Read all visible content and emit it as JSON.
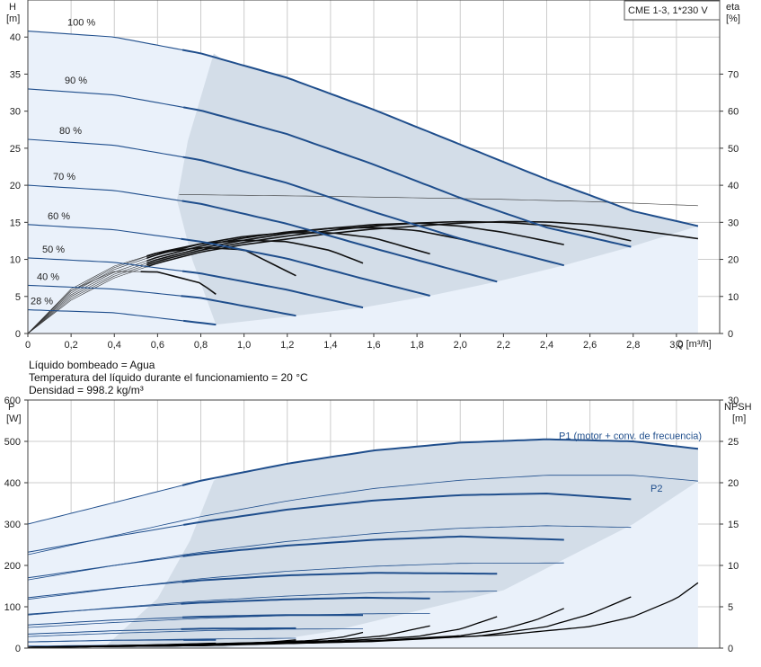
{
  "model_box": "CME 1-3, 1*230 V",
  "info": [
    "Líquido bombeado = Agua",
    "Temperatura del líquido durante el funcionamiento = 20 °C",
    "Densidad = 998.2 kg/m³"
  ],
  "colors": {
    "curve_blue": "#1f4e8c",
    "envelope_fill": "#d3dde8",
    "light_fill": "#eaf1fa",
    "grid": "#cccccc",
    "npsh_black": "#000000"
  },
  "chart_data": [
    {
      "type": "line",
      "title": "",
      "xlabel": "Q [m³/h]",
      "ylabel": "H [m]",
      "y2label": "eta [%]",
      "xlim": [
        0,
        3.2
      ],
      "ylim": [
        0,
        45
      ],
      "y2lim": [
        0,
        90
      ],
      "x_ticks": [
        "0",
        "0,2",
        "0,4",
        "0,6",
        "0,8",
        "1,0",
        "1,2",
        "1,4",
        "1,6",
        "1,8",
        "2,0",
        "2,2",
        "2,4",
        "2,6",
        "2,8",
        "3,0"
      ],
      "y_ticks": [
        "0",
        "5",
        "10",
        "15",
        "20",
        "25",
        "30",
        "35",
        "40"
      ],
      "y2_ticks": [
        "0",
        "10",
        "20",
        "30",
        "40",
        "50",
        "60",
        "70"
      ],
      "grid": true,
      "head_series": [
        {
          "name": "100 %",
          "x": [
            0,
            0.4,
            0.8,
            1.2,
            1.6,
            2.0,
            2.4,
            2.8,
            3.1
          ],
          "y": [
            40.8,
            40.0,
            37.8,
            34.5,
            30.2,
            25.5,
            20.8,
            16.5,
            14.5
          ]
        },
        {
          "name": "90 %",
          "x": [
            0,
            0.4,
            0.8,
            1.2,
            1.6,
            2.0,
            2.4,
            2.79
          ],
          "y": [
            33.0,
            32.2,
            30.1,
            26.9,
            22.8,
            18.3,
            14.3,
            11.7
          ]
        },
        {
          "name": "80 %",
          "x": [
            0,
            0.4,
            0.8,
            1.2,
            1.6,
            2.0,
            2.48
          ],
          "y": [
            26.2,
            25.4,
            23.4,
            20.3,
            16.4,
            12.8,
            9.2
          ]
        },
        {
          "name": "70 %",
          "x": [
            0,
            0.4,
            0.8,
            1.2,
            1.6,
            2.17
          ],
          "y": [
            20.0,
            19.3,
            17.5,
            14.8,
            11.5,
            7.0
          ]
        },
        {
          "name": "60 %",
          "x": [
            0,
            0.4,
            0.8,
            1.2,
            1.55,
            1.86
          ],
          "y": [
            14.7,
            14.0,
            12.4,
            10.1,
            7.4,
            5.1
          ]
        },
        {
          "name": "50 %",
          "x": [
            0,
            0.4,
            0.8,
            1.2,
            1.55
          ],
          "y": [
            10.2,
            9.6,
            8.1,
            5.9,
            3.5
          ]
        },
        {
          "name": "40 %",
          "x": [
            0,
            0.4,
            0.8,
            1.24
          ],
          "y": [
            6.5,
            6.0,
            4.8,
            2.4
          ]
        },
        {
          "name": "28 %",
          "x": [
            0,
            0.4,
            0.87
          ],
          "y": [
            3.2,
            2.8,
            1.2
          ]
        }
      ],
      "eta_series": [
        {
          "speed": "100 %",
          "x": [
            0,
            0.2,
            0.4,
            0.6,
            0.8,
            1.0,
            1.2,
            1.4,
            1.6,
            1.8,
            2.0,
            2.2,
            2.4,
            2.6,
            2.8,
            3.1
          ],
          "y": [
            0,
            9,
            15,
            19,
            22,
            24,
            25.5,
            27,
            28.2,
            29,
            29.8,
            30.2,
            30.1,
            29.4,
            28,
            25.6
          ]
        },
        {
          "speed": "90 %",
          "x": [
            0,
            0.2,
            0.4,
            0.6,
            0.8,
            1.0,
            1.2,
            1.4,
            1.6,
            1.8,
            2.0,
            2.2,
            2.4,
            2.6,
            2.79
          ],
          "y": [
            0,
            9.5,
            15.5,
            19.5,
            22.5,
            24.6,
            26.3,
            27.8,
            29,
            29.8,
            30.2,
            30,
            29.2,
            27.5,
            25
          ]
        },
        {
          "speed": "80 %",
          "x": [
            0,
            0.2,
            0.4,
            0.6,
            0.8,
            1.0,
            1.2,
            1.4,
            1.6,
            1.8,
            2.0,
            2.2,
            2.48
          ],
          "y": [
            0,
            10,
            16,
            20,
            23,
            25.2,
            27,
            28.4,
            29.4,
            29.8,
            29,
            27.3,
            24
          ]
        },
        {
          "speed": "70 %",
          "x": [
            0,
            0.2,
            0.4,
            0.6,
            0.8,
            1.0,
            1.2,
            1.4,
            1.6,
            1.8,
            2.0,
            2.17
          ],
          "y": [
            0,
            10.5,
            16.6,
            20.6,
            23.6,
            25.8,
            27.4,
            28.4,
            28.6,
            27.8,
            25.5,
            23
          ]
        },
        {
          "speed": "60 %",
          "x": [
            0,
            0.2,
            0.4,
            0.6,
            0.8,
            1.0,
            1.2,
            1.4,
            1.6,
            1.86
          ],
          "y": [
            0,
            11,
            17.3,
            21.3,
            24.2,
            26.2,
            27.2,
            27.2,
            25.8,
            21.5
          ]
        },
        {
          "speed": "50 %",
          "x": [
            0,
            0.2,
            0.4,
            0.6,
            0.8,
            1.0,
            1.2,
            1.4,
            1.55
          ],
          "y": [
            0,
            11.5,
            17.8,
            21.8,
            24.2,
            25.2,
            24.8,
            22.4,
            19
          ]
        },
        {
          "speed": "40 %",
          "x": [
            0,
            0.2,
            0.4,
            0.6,
            0.8,
            1.0,
            1.24
          ],
          "y": [
            0,
            12,
            18.2,
            21.8,
            23.2,
            22.6,
            15.6
          ]
        },
        {
          "speed": "28 %",
          "x": [
            0,
            0.2,
            0.4,
            0.6,
            0.8,
            0.87
          ],
          "y": [
            0,
            11.6,
            16.8,
            16.6,
            13.6,
            10.6
          ]
        }
      ],
      "eta_at_fixed_head": [
        {
          "head": 18.5,
          "x": [
            0.7,
            1.0,
            1.4,
            1.8,
            2.2,
            2.6,
            3.1
          ],
          "y": [
            37.5,
            37.3,
            37.0,
            36.6,
            36.2,
            35.6,
            34.5
          ]
        }
      ]
    },
    {
      "type": "line",
      "title": "",
      "xlabel": "Q [m³/h]",
      "ylabel": "P [W]",
      "y2label": "NPSH [m]",
      "xlim": [
        0,
        3.2
      ],
      "ylim": [
        0,
        600
      ],
      "y2lim": [
        0,
        30
      ],
      "y_ticks": [
        "0",
        "100",
        "200",
        "300",
        "400",
        "500",
        "600"
      ],
      "y2_ticks": [
        "0",
        "5",
        "10",
        "15",
        "20",
        "25",
        "30"
      ],
      "grid": true,
      "p1_label": "P1 (motor + conv. de frecuencia)",
      "p2_label": "P2",
      "p1_series": [
        {
          "speed": "100 %",
          "x": [
            0,
            0.4,
            0.8,
            1.2,
            1.6,
            2.0,
            2.4,
            2.8,
            3.1
          ],
          "y": [
            300,
            352,
            405,
            446,
            478,
            497,
            505,
            500,
            482
          ]
        },
        {
          "speed": "90 %",
          "x": [
            0,
            0.4,
            0.8,
            1.2,
            1.6,
            2.0,
            2.4,
            2.79
          ],
          "y": [
            232,
            270,
            305,
            335,
            357,
            370,
            374,
            360
          ]
        },
        {
          "speed": "80 %",
          "x": [
            0,
            0.4,
            0.8,
            1.2,
            1.6,
            2.0,
            2.48
          ],
          "y": [
            170,
            200,
            228,
            248,
            262,
            270,
            262
          ]
        },
        {
          "speed": "70 %",
          "x": [
            0,
            0.4,
            0.8,
            1.2,
            1.6,
            2.17
          ],
          "y": [
            122,
            145,
            164,
            176,
            182,
            180
          ]
        },
        {
          "speed": "60 %",
          "x": [
            0,
            0.4,
            0.8,
            1.2,
            1.55,
            1.86
          ],
          "y": [
            82,
            97,
            110,
            118,
            122,
            120
          ]
        },
        {
          "speed": "50 %",
          "x": [
            0,
            0.4,
            0.8,
            1.2,
            1.55
          ],
          "y": [
            56,
            68,
            76,
            80,
            80
          ]
        },
        {
          "speed": "40 %",
          "x": [
            0,
            0.4,
            0.8,
            1.24
          ],
          "y": [
            34,
            42,
            47,
            48
          ]
        },
        {
          "speed": "28 %",
          "x": [
            0,
            0.4,
            0.87
          ],
          "y": [
            15,
            19,
            20
          ]
        }
      ],
      "p2_series": [
        {
          "speed": "100 %",
          "x": [
            0,
            0.4,
            0.8,
            1.2,
            1.6,
            2.0,
            2.4,
            2.8,
            3.1
          ],
          "y": [
            226,
            272,
            318,
            356,
            386,
            406,
            418,
            418,
            404
          ]
        },
        {
          "speed": "90 %",
          "x": [
            0,
            0.4,
            0.8,
            1.2,
            1.6,
            2.0,
            2.4,
            2.79
          ],
          "y": [
            165,
            200,
            232,
            258,
            277,
            290,
            296,
            292
          ]
        },
        {
          "speed": "80 %",
          "x": [
            0,
            0.4,
            0.8,
            1.2,
            1.6,
            2.0,
            2.48
          ],
          "y": [
            118,
            144,
            168,
            186,
            198,
            205,
            206
          ]
        },
        {
          "speed": "70 %",
          "x": [
            0,
            0.4,
            0.8,
            1.2,
            1.6,
            2.17
          ],
          "y": [
            80,
            98,
            114,
            126,
            134,
            138
          ]
        },
        {
          "speed": "60 %",
          "x": [
            0,
            0.4,
            0.8,
            1.2,
            1.55,
            1.86
          ],
          "y": [
            50,
            62,
            72,
            79,
            83,
            84
          ]
        },
        {
          "speed": "50 %",
          "x": [
            0,
            0.4,
            0.8,
            1.2,
            1.55
          ],
          "y": [
            28,
            36,
            42,
            46,
            47
          ]
        },
        {
          "speed": "40 %",
          "x": [
            0,
            0.4,
            0.8,
            1.24
          ],
          "y": [
            15,
            19,
            22,
            24
          ]
        },
        {
          "speed": "28 %",
          "x": [
            0,
            0.4,
            0.87
          ],
          "y": [
            5,
            7,
            8
          ]
        }
      ],
      "npsh_series": [
        {
          "speed": "100 %",
          "x": [
            0,
            0.8,
            1.6,
            2.2,
            2.6,
            2.8,
            3.0,
            3.1
          ],
          "y": [
            0.1,
            0.4,
            0.9,
            1.6,
            2.6,
            3.8,
            6,
            7.9
          ]
        },
        {
          "speed": "90 %",
          "x": [
            0,
            0.8,
            1.6,
            2.1,
            2.4,
            2.6,
            2.79
          ],
          "y": [
            0.1,
            0.3,
            0.8,
            1.5,
            2.6,
            4.1,
            6.2
          ]
        },
        {
          "speed": "80 %",
          "x": [
            0,
            0.8,
            1.6,
            2.0,
            2.2,
            2.35,
            2.48
          ],
          "y": [
            0.1,
            0.3,
            0.9,
            1.5,
            2.3,
            3.4,
            4.8
          ]
        },
        {
          "speed": "70 %",
          "x": [
            0,
            0.8,
            1.4,
            1.8,
            2.0,
            2.17
          ],
          "y": [
            0.1,
            0.3,
            0.8,
            1.4,
            2.3,
            3.8
          ]
        },
        {
          "speed": "60 %",
          "x": [
            0,
            0.8,
            1.4,
            1.65,
            1.86
          ],
          "y": [
            0.1,
            0.4,
            0.9,
            1.5,
            2.7
          ]
        },
        {
          "speed": "50 %",
          "x": [
            0,
            0.8,
            1.3,
            1.45,
            1.55
          ],
          "y": [
            0.1,
            0.4,
            0.9,
            1.3,
            1.9
          ]
        },
        {
          "speed": "40 %",
          "x": [
            0,
            0.8,
            1.1,
            1.24
          ],
          "y": [
            0.1,
            0.5,
            0.7,
            1.0
          ]
        },
        {
          "speed": "28 %",
          "x": [
            0,
            0.6,
            0.87
          ],
          "y": [
            0.1,
            0.4,
            0.6
          ]
        }
      ]
    }
  ]
}
